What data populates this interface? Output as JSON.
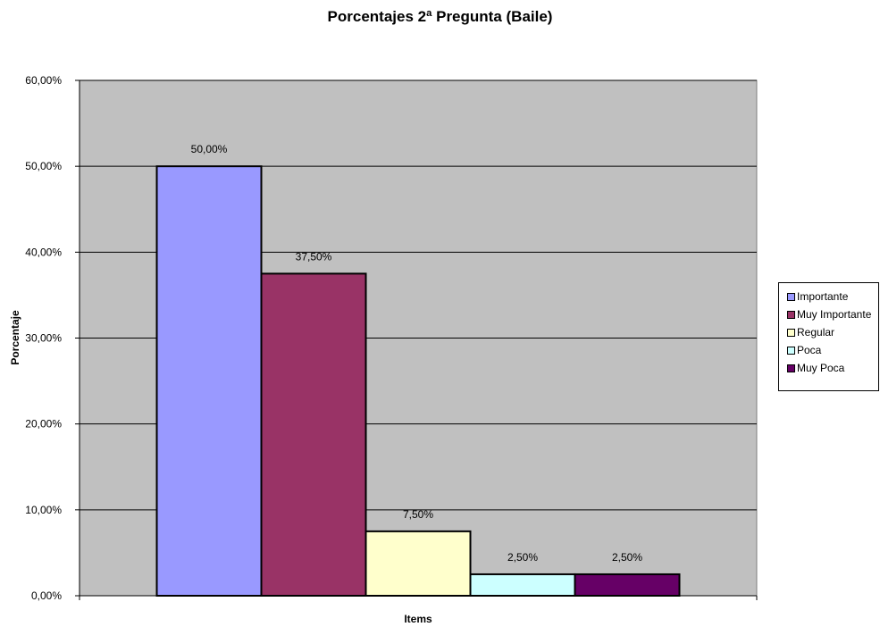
{
  "chart_data": {
    "type": "bar",
    "title": "Porcentajes 2ª Pregunta (Baile)",
    "xlabel": "Items",
    "ylabel": "Porcentaje",
    "ylim": [
      0,
      0.6
    ],
    "ytick_values": [
      0,
      0.1,
      0.2,
      0.3,
      0.4,
      0.5,
      0.6
    ],
    "ytick_labels": [
      "0,00%",
      "10,00%",
      "20,00%",
      "30,00%",
      "40,00%",
      "50,00%",
      "60,00%"
    ],
    "grid": true,
    "legend_position": "right",
    "series": [
      {
        "name": "Importante",
        "value": 0.5,
        "label": "50,00%",
        "color": "#9999ff"
      },
      {
        "name": "Muy Importante",
        "value": 0.375,
        "label": "37,50%",
        "color": "#993366"
      },
      {
        "name": "Regular",
        "value": 0.075,
        "label": "7,50%",
        "color": "#ffffcc"
      },
      {
        "name": "Poca",
        "value": 0.025,
        "label": "2,50%",
        "color": "#ccffff"
      },
      {
        "name": "Muy Poca",
        "value": 0.025,
        "label": "2,50%",
        "color": "#660066"
      }
    ],
    "plot_background": "#c0c0c0"
  }
}
